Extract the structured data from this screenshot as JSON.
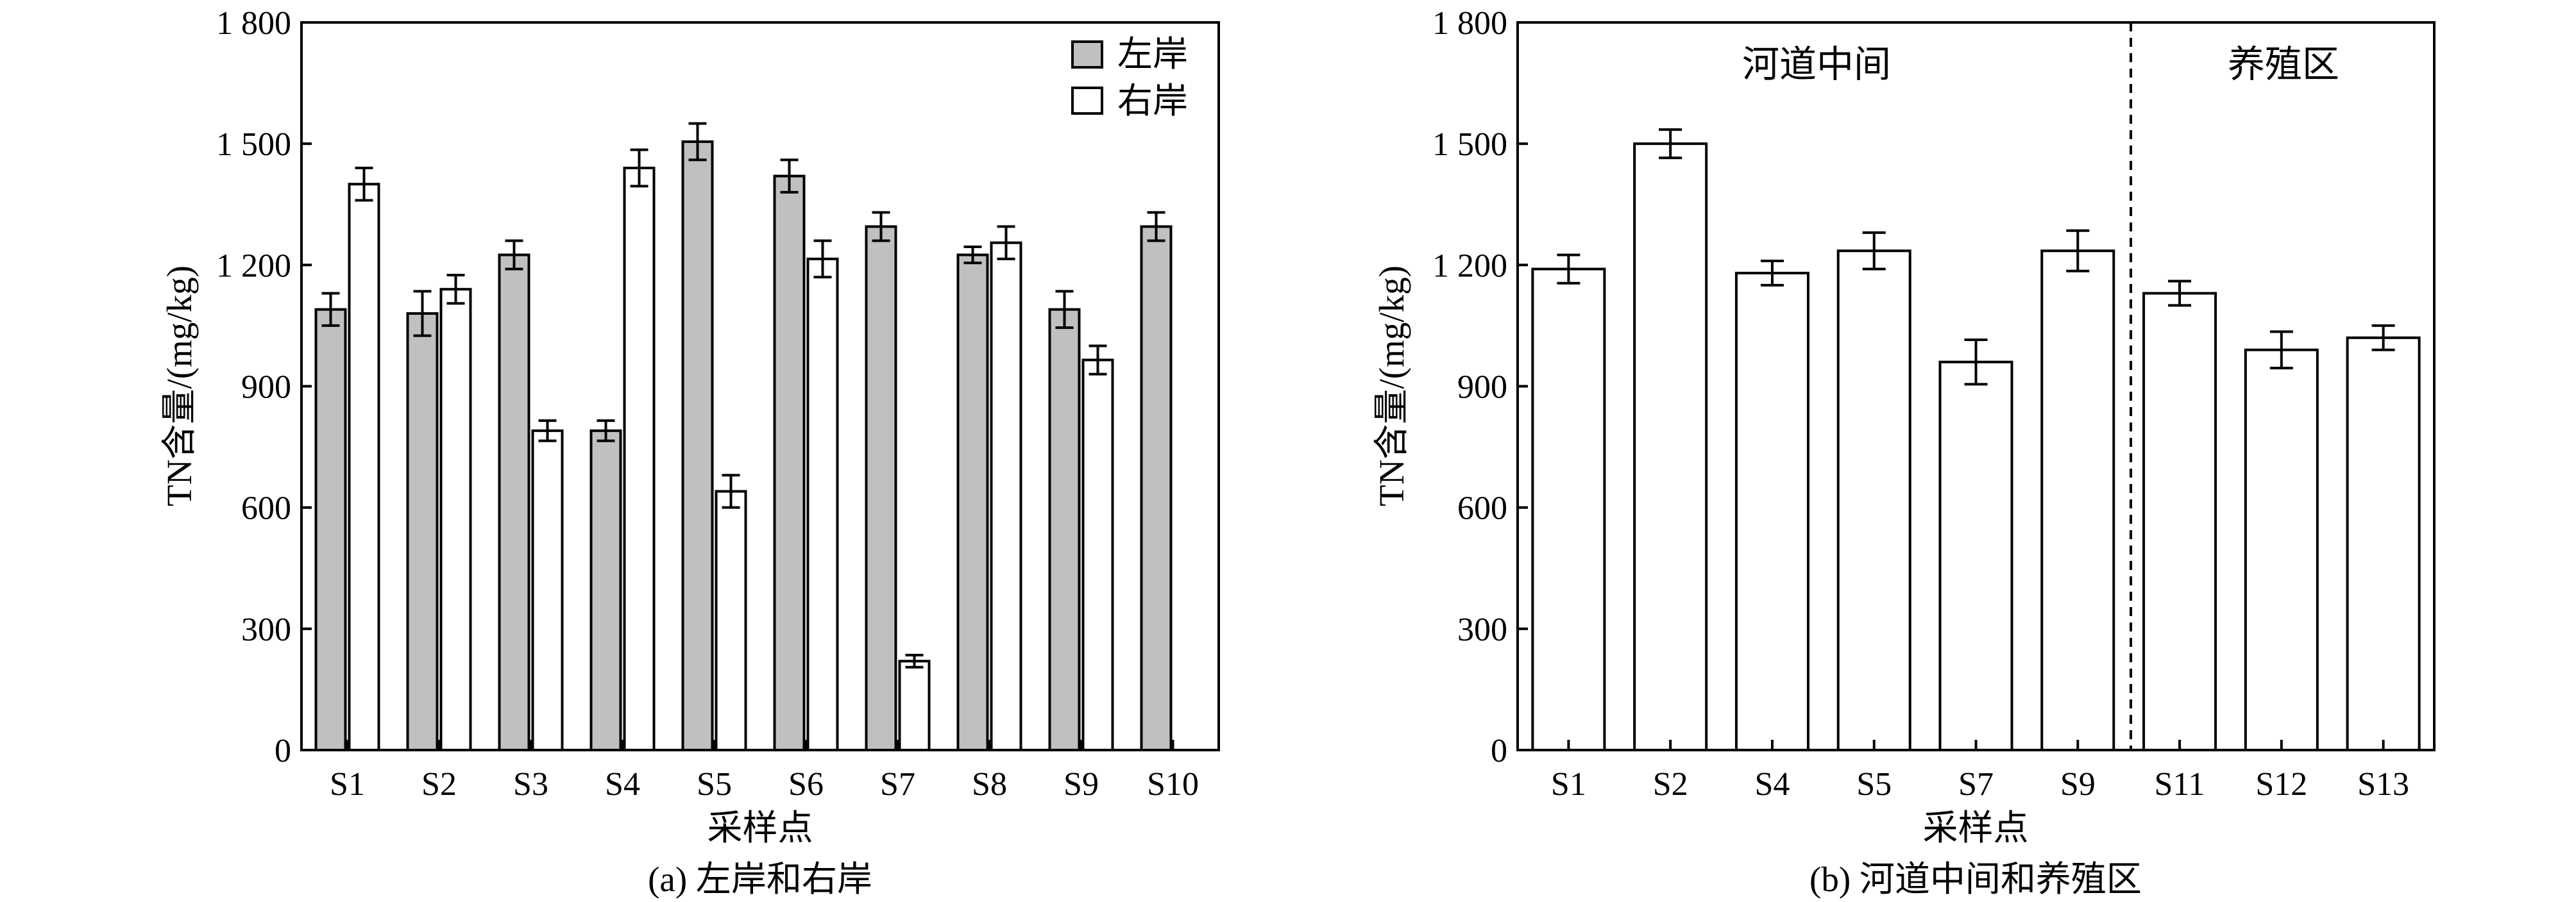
{
  "chart_data": [
    {
      "type": "bar",
      "caption": "(a) 左岸和右岸",
      "xlabel": "采样点",
      "ylabel": "TN含量/(mg/kg)",
      "ylim": [
        0,
        1800
      ],
      "yticks": [
        0,
        300,
        600,
        900,
        1200,
        1500,
        1800
      ],
      "ytick_labels": [
        "0",
        "300",
        "600",
        "900",
        "1 200",
        "1 500",
        "1 800"
      ],
      "categories": [
        "S1",
        "S2",
        "S3",
        "S4",
        "S5",
        "S6",
        "S7",
        "S8",
        "S9",
        "S10"
      ],
      "legend_position": "top-right",
      "series": [
        {
          "name": "左岸",
          "color": "#c0c0c0",
          "values": [
            1090,
            1080,
            1225,
            790,
            1505,
            1420,
            1295,
            1225,
            1090,
            1295
          ],
          "errors": [
            40,
            55,
            35,
            25,
            45,
            40,
            35,
            20,
            45,
            35
          ]
        },
        {
          "name": "右岸",
          "color": "#ffffff",
          "values": [
            1400,
            1140,
            790,
            1440,
            640,
            1215,
            220,
            1255,
            965,
            null
          ],
          "errors": [
            40,
            35,
            25,
            45,
            40,
            45,
            15,
            40,
            35,
            null
          ]
        }
      ]
    },
    {
      "type": "bar",
      "caption": "(b) 河道中间和养殖区",
      "xlabel": "采样点",
      "ylabel": "TN含量/(mg/kg)",
      "ylim": [
        0,
        1800
      ],
      "yticks": [
        0,
        300,
        600,
        900,
        1200,
        1500,
        1800
      ],
      "ytick_labels": [
        "0",
        "300",
        "600",
        "900",
        "1 200",
        "1 500",
        "1 800"
      ],
      "categories": [
        "S1",
        "S2",
        "S4",
        "S5",
        "S7",
        "S9",
        "S11",
        "S12",
        "S13"
      ],
      "regions": [
        {
          "label": "河道中间",
          "categories": [
            "S1",
            "S2",
            "S4",
            "S5",
            "S7",
            "S9"
          ]
        },
        {
          "label": "养殖区",
          "categories": [
            "S11",
            "S12",
            "S13"
          ]
        }
      ],
      "series": [
        {
          "color": "#ffffff",
          "values": [
            1190,
            1500,
            1180,
            1235,
            960,
            1235,
            1130,
            990,
            1020
          ],
          "errors": [
            35,
            35,
            30,
            45,
            55,
            50,
            30,
            45,
            30
          ]
        }
      ]
    }
  ]
}
